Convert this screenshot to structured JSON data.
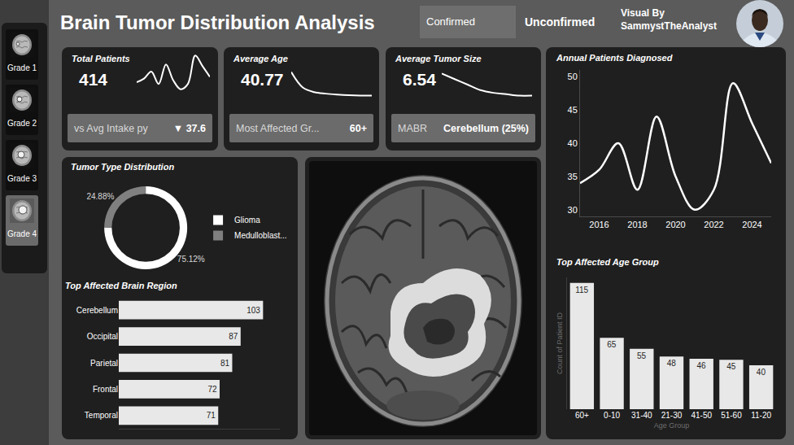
{
  "header": {
    "title": "Brain Tumor Distribution Analysis",
    "filters": [
      {
        "label": "Confirmed",
        "selected": true
      },
      {
        "label": "Unconfirmed",
        "selected": false
      }
    ],
    "credit": [
      "Visual By",
      "SammystTheAnalyst"
    ]
  },
  "sidebar": {
    "items": [
      "Grade 1",
      "Grade 2",
      "Grade 3",
      "Grade 4"
    ],
    "selected": "Grade 4"
  },
  "kpis": [
    {
      "title": "Total Patients",
      "value": 414,
      "footer": {
        "label": "vs Avg Intake py",
        "value": "▼ 37.6"
      },
      "sparkline": {
        "type": "line",
        "values": [
          34,
          36,
          40,
          33,
          44,
          35,
          30,
          33,
          49,
          43,
          37
        ],
        "color": "#ffffff",
        "line_style": "smooth",
        "tick_labels": false
      }
    },
    {
      "title": "Average Age",
      "value": 40.77,
      "footer": {
        "label": "Most Affected Gr...",
        "value": "60+"
      },
      "sparkline": {
        "type": "line",
        "values": [
          47,
          42,
          40.5,
          40,
          39.7,
          39.5,
          39.4,
          39.4
        ],
        "color": "#ffffff",
        "line_style": "smooth",
        "tick_labels": false
      }
    },
    {
      "title": "Average Tumor Size",
      "value": 6.54,
      "footer": {
        "label": "MABR",
        "value": "Cerebellum (25%)"
      },
      "sparkline": {
        "type": "line",
        "values": [
          7.3,
          7.1,
          6.9,
          6.7,
          6.6,
          6.55,
          6.5,
          6.5
        ],
        "color": "#ffffff",
        "line_style": "smooth",
        "tick_labels": false
      }
    }
  ],
  "chart_data": [
    {
      "type": "line",
      "title": "Annual Patients Diagnosed",
      "x": [
        2015,
        2016,
        2017,
        2018,
        2019,
        2020,
        2021,
        2022,
        2023,
        2024,
        2025
      ],
      "values": [
        34,
        36,
        40,
        33,
        44,
        35,
        30,
        33,
        49,
        43,
        37
      ],
      "color": "#ffffff",
      "line_style": "smooth",
      "xlim": [
        2015,
        2025
      ],
      "xticks": [
        2016,
        2018,
        2020,
        2022,
        2024
      ],
      "ylim": [
        29,
        51
      ],
      "yticks": [
        30,
        35,
        40,
        45,
        50
      ],
      "grid": false
    },
    {
      "type": "donut",
      "title": "Tumor Type Distribution",
      "categories": [
        "Glioma",
        "Medulloblast..."
      ],
      "values": [
        75.12,
        24.88
      ],
      "value_labels": [
        "75.12%",
        "24.88%"
      ],
      "colors": [
        "#ffffff",
        "#808080"
      ],
      "legend": "right"
    },
    {
      "type": "bar",
      "title": "Top Affected Brain Region",
      "orientation": "horizontal",
      "categories": [
        "Cerebellum",
        "Occipital",
        "Parietal",
        "Frontal",
        "Temporal"
      ],
      "values": [
        103,
        87,
        81,
        72,
        71
      ],
      "color": "#e8e8e8",
      "xlim": [
        0,
        115
      ],
      "data_labels": true,
      "tick_labels": "y",
      "grid": false
    },
    {
      "type": "bar",
      "title": "Top Affected Age Group",
      "categories": [
        "60+",
        "0-10",
        "31-40",
        "21-30",
        "41-50",
        "51-60",
        "11-20"
      ],
      "values": [
        115,
        65,
        55,
        48,
        46,
        45,
        40
      ],
      "color": "#e8e8e8",
      "ylim": [
        0,
        120
      ],
      "xlabel": "Age Group",
      "ylabel": "Count of Patient ID",
      "data_labels": true,
      "tick_labels": "x",
      "grid": false
    }
  ]
}
